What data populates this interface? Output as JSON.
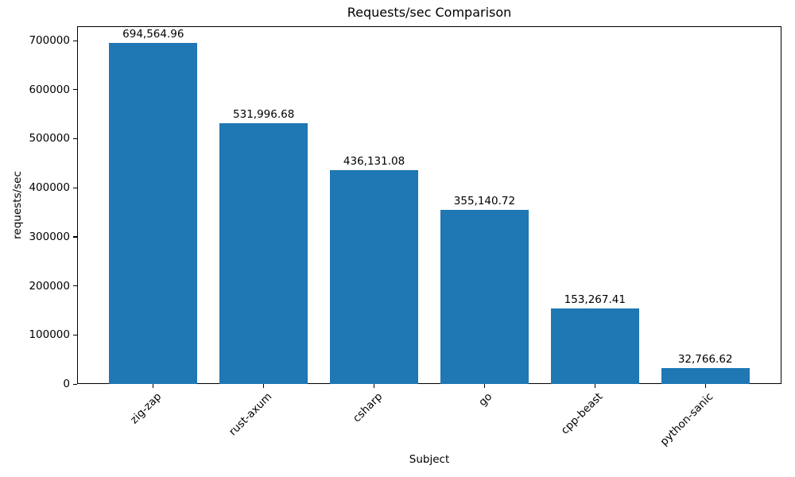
{
  "chart_data": {
    "type": "bar",
    "title": "Requests/sec Comparison",
    "xlabel": "Subject",
    "ylabel": "requests/sec",
    "categories": [
      "zig-zap",
      "rust-axum",
      "csharp",
      "go",
      "cpp-beast",
      "python-sanic"
    ],
    "values": [
      694564.96,
      531996.68,
      436131.08,
      355140.72,
      153267.41,
      32766.62
    ],
    "value_labels": [
      "694,564.96",
      "531,996.68",
      "436,131.08",
      "355,140.72",
      "153,267.41",
      "32,766.62"
    ],
    "yticks": [
      0,
      100000,
      200000,
      300000,
      400000,
      500000,
      600000,
      700000
    ],
    "ytick_labels": [
      "0",
      "100000",
      "200000",
      "300000",
      "400000",
      "500000",
      "600000",
      "700000"
    ],
    "ylim": [
      0,
      729293
    ],
    "bar_color": "#1f77b4",
    "text_color": "#000000",
    "grid": false,
    "legend": null
  }
}
